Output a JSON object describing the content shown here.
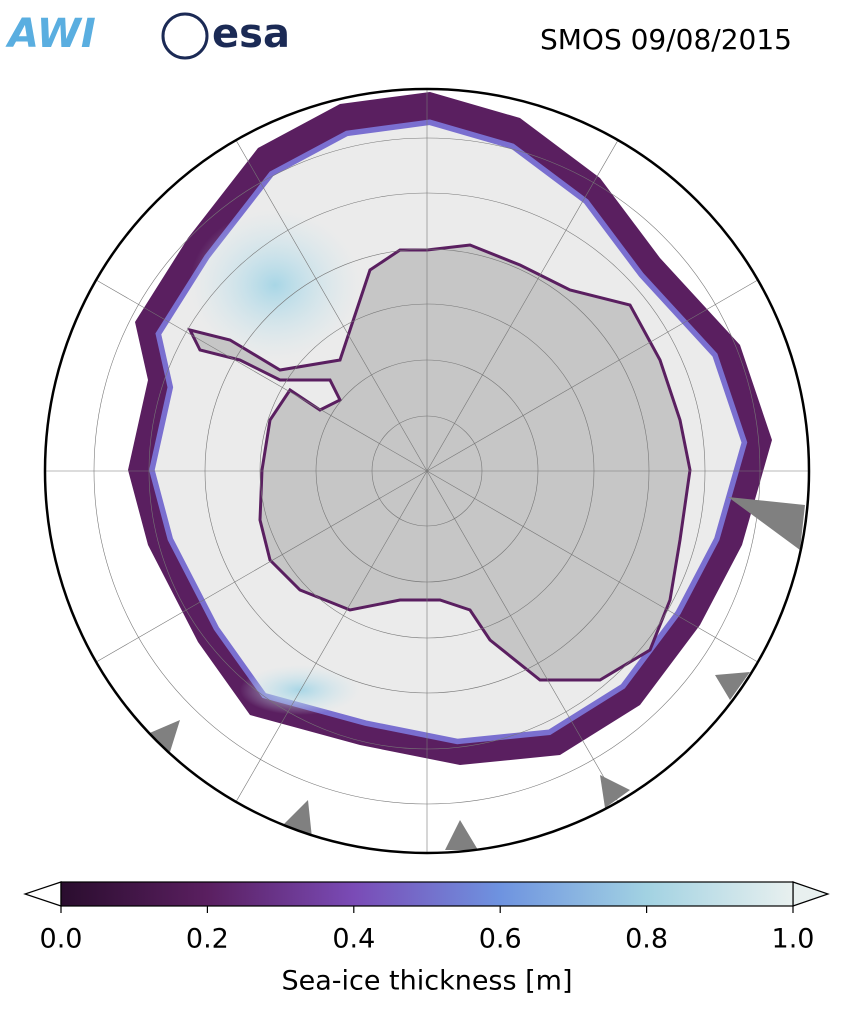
{
  "header": {
    "logos": [
      "AWI",
      "esa"
    ],
    "title": "SMOS 09/08/2015"
  },
  "colorbar": {
    "label": "Sea-ice thickness [m]",
    "lim": [
      0,
      1
    ],
    "ticks": [
      {
        "value": 0,
        "label": "0.0"
      },
      {
        "value": 0.2,
        "label": "0.2"
      },
      {
        "value": 0.4,
        "label": "0.4"
      },
      {
        "value": 0.6,
        "label": "0.6"
      },
      {
        "value": 0.8,
        "label": "0.8"
      },
      {
        "value": 1,
        "label": "1.0"
      }
    ],
    "colors": [
      "#2a0d2e",
      "#5a1f60",
      "#7a4bb6",
      "#6e93e0",
      "#a2d2e2",
      "#e8f0ef"
    ]
  }
}
